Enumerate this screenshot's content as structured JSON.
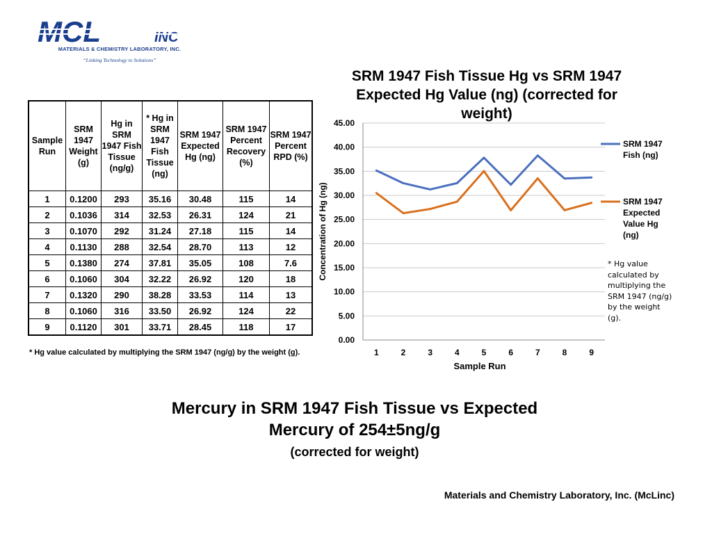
{
  "logo": {
    "mark": "MCL",
    "mark_suffix": "INC",
    "company": "MATERIALS & CHEMISTRY LABORATORY, INC.",
    "tagline": "“Linking Technology to Solutions”",
    "color": "#1a3d8f"
  },
  "table": {
    "headers": [
      "Sample Run",
      "SRM 1947 Weight (g)",
      "Hg in SRM 1947 Fish Tissue (ng/g)",
      "* Hg in SRM 1947 Fish Tissue (ng)",
      "SRM 1947 Expected Hg (ng)",
      "SRM 1947 Percent Recovery (%)",
      "SRM 1947 Percent RPD (%)"
    ],
    "rows": [
      [
        "1",
        "0.1200",
        "293",
        "35.16",
        "30.48",
        "115",
        "14"
      ],
      [
        "2",
        "0.1036",
        "314",
        "32.53",
        "26.31",
        "124",
        "21"
      ],
      [
        "3",
        "0.1070",
        "292",
        "31.24",
        "27.18",
        "115",
        "14"
      ],
      [
        "4",
        "0.1130",
        "288",
        "32.54",
        "28.70",
        "113",
        "12"
      ],
      [
        "5",
        "0.1380",
        "274",
        "37.81",
        "35.05",
        "108",
        "7.6"
      ],
      [
        "6",
        "0.1060",
        "304",
        "32.22",
        "26.92",
        "120",
        "18"
      ],
      [
        "7",
        "0.1320",
        "290",
        "38.28",
        "33.53",
        "114",
        "13"
      ],
      [
        "8",
        "0.1060",
        "316",
        "33.50",
        "26.92",
        "124",
        "22"
      ],
      [
        "9",
        "0.1120",
        "301",
        "33.71",
        "28.45",
        "118",
        "17"
      ]
    ],
    "footnote": "* Hg value calculated by multiplying  the SRM 1947 (ng/g) by the weight (g)."
  },
  "chart_data": {
    "type": "line",
    "title": "SRM 1947 Fish Tissue Hg vs SRM 1947 Expected Hg Value (ng) (corrected for weight)",
    "xlabel": "Sample Run",
    "ylabel": "Concentration of Hg (ng)",
    "categories": [
      "1",
      "2",
      "3",
      "4",
      "5",
      "6",
      "7",
      "8",
      "9"
    ],
    "ylim": [
      0,
      45
    ],
    "yticks": [
      "0.00",
      "5.00",
      "10.00",
      "15.00",
      "20.00",
      "25.00",
      "30.00",
      "35.00",
      "40.00",
      "45.00"
    ],
    "grid": true,
    "legend_position": "right",
    "series": [
      {
        "name": "SRM 1947 Fish (ng)",
        "color": "#4a6fbe",
        "values": [
          35.16,
          32.53,
          31.24,
          32.54,
          37.81,
          32.22,
          38.28,
          33.5,
          33.71
        ]
      },
      {
        "name": "SRM 1947 Expected Value Hg (ng)",
        "color": "#d9701e",
        "values": [
          30.48,
          26.31,
          27.18,
          28.7,
          35.05,
          26.92,
          33.53,
          26.92,
          28.45
        ]
      }
    ]
  },
  "side_note": "* Hg value calculated by multiplying the SRM 1947 (ng/g) by the weight (g).",
  "main_title": "Mercury in SRM 1947 Fish Tissue vs Expected Mercury of 254±5ng/g",
  "main_subtitle": "(corrected for weight)",
  "footer": "Materials and Chemistry Laboratory, Inc. (McLinc)"
}
